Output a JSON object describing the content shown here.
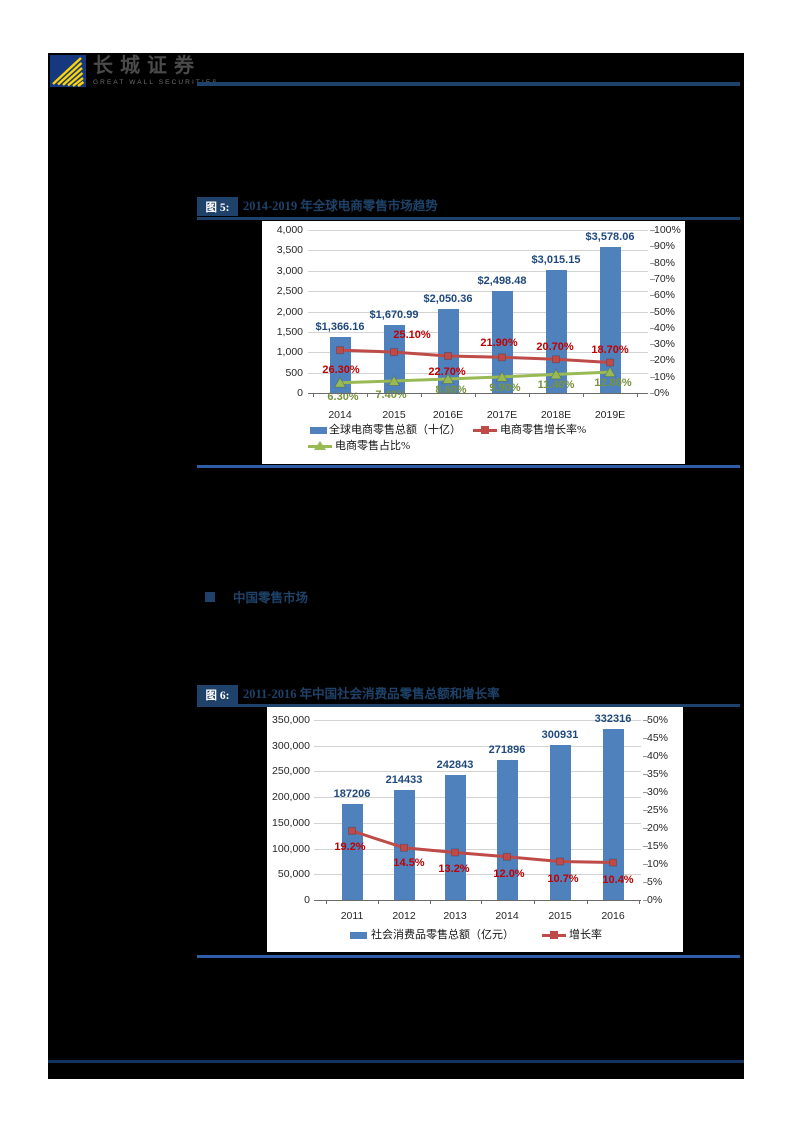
{
  "logo": {
    "company": "长城证券",
    "subtitle": "GREAT WALL SECURITIES"
  },
  "section_heading": "中国零售市场",
  "figures": [
    {
      "label": "图 5:",
      "title": "2014-2019 年全球电商零售市场趋势"
    },
    {
      "label": "图 6:",
      "title": "2011-2016 年中国社会消费品零售总额和增长率"
    }
  ],
  "colors": {
    "navy": "#1E4269",
    "rule_blue": "#2F5DA8",
    "footer_blue": "#14325F",
    "bar_blue": "#4F81BD",
    "line_red": "#BE4B48",
    "line_green": "#98B954",
    "bar_label_navy": "#1F497D",
    "red_label": "#C00000",
    "green_label": "#77933C"
  },
  "chart_data": [
    {
      "type": "combo-bar-line",
      "title": "2014-2019 年全球电商零售市场趋势",
      "categories": [
        "2014",
        "2015",
        "2016E",
        "2017E",
        "2018E",
        "2019E"
      ],
      "series": [
        {
          "name": "全球电商零售总额（十亿）",
          "type": "bar",
          "axis": "left",
          "color": "#4F81BD",
          "values": [
            1366.16,
            1670.99,
            2050.36,
            2498.48,
            3015.15,
            3578.06
          ],
          "labels": [
            "$1,366.16",
            "$1,670.99",
            "$2,050.36",
            "$2,498.48",
            "$3,015.15",
            "$3,578.06"
          ],
          "label_color": "#1F497D"
        },
        {
          "name": "电商零售增长率%",
          "type": "line",
          "marker": "square",
          "axis": "right",
          "color": "#BE4B48",
          "values": [
            26.3,
            25.1,
            22.7,
            21.9,
            20.7,
            18.7
          ],
          "labels": [
            "26.30%",
            "25.10%",
            "22.70%",
            "21.90%",
            "20.70%",
            "18.70%"
          ],
          "label_color": "#C00000"
        },
        {
          "name": "电商零售占比%",
          "type": "line",
          "marker": "triangle",
          "axis": "right",
          "color": "#98B954",
          "values": [
            6.3,
            7.4,
            8.6,
            9.9,
            11.4,
            12.8
          ],
          "labels": [
            "6.30%",
            "7.40%",
            "8.60%",
            "9.90%",
            "11.40%",
            "12.80%"
          ],
          "label_color": "#77933C"
        }
      ],
      "left_axis": {
        "min": 0,
        "max": 4000,
        "step": 500,
        "ticks": [
          "0",
          "500",
          "1,000",
          "1,500",
          "2,000",
          "2,500",
          "3,000",
          "3,500",
          "4,000"
        ]
      },
      "right_axis": {
        "min": 0,
        "max": 100,
        "step": 10,
        "ticks": [
          "0%",
          "10%",
          "20%",
          "30%",
          "40%",
          "50%",
          "60%",
          "70%",
          "80%",
          "90%",
          "100%"
        ]
      },
      "legend_position": "bottom",
      "grid": true
    },
    {
      "type": "combo-bar-line",
      "title": "2011-2016 年中国社会消费品零售总额和增长率",
      "categories": [
        "2011",
        "2012",
        "2013",
        "2014",
        "2015",
        "2016"
      ],
      "series": [
        {
          "name": "社会消费品零售总额（亿元）",
          "type": "bar",
          "axis": "left",
          "color": "#4F81BD",
          "values": [
            187206,
            214433,
            242843,
            271896,
            300931,
            332316
          ],
          "labels": [
            "187206",
            "214433",
            "242843",
            "271896",
            "300931",
            "332316"
          ],
          "label_color": "#1F497D"
        },
        {
          "name": "增长率",
          "type": "line",
          "marker": "square",
          "axis": "right",
          "color": "#BE4B48",
          "values": [
            19.2,
            14.5,
            13.2,
            12.0,
            10.7,
            10.4
          ],
          "labels": [
            "19.2%",
            "14.5%",
            "13.2%",
            "12.0%",
            "10.7%",
            "10.4%"
          ],
          "label_color": "#C00000"
        }
      ],
      "left_axis": {
        "min": 0,
        "max": 350000,
        "step": 50000,
        "ticks": [
          "0",
          "50,000",
          "100,000",
          "150,000",
          "200,000",
          "250,000",
          "300,000",
          "350,000"
        ]
      },
      "right_axis": {
        "min": 0,
        "max": 50,
        "step": 5,
        "ticks": [
          "0%",
          "5%",
          "10%",
          "15%",
          "20%",
          "25%",
          "30%",
          "35%",
          "40%",
          "45%",
          "50%"
        ]
      },
      "legend_position": "bottom",
      "grid": true
    }
  ]
}
